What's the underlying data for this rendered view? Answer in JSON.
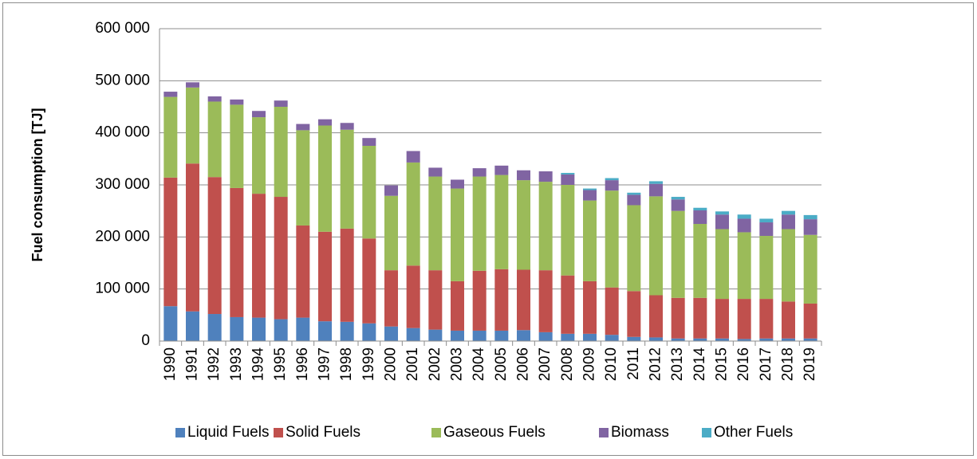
{
  "chart_data": {
    "type": "bar",
    "stacked": true,
    "y_label": "Fuel consumption [TJ]",
    "categories": [
      "1990",
      "1991",
      "1992",
      "1993",
      "1994",
      "1995",
      "1996",
      "1997",
      "1998",
      "1999",
      "2000",
      "2001",
      "2002",
      "2003",
      "2004",
      "2005",
      "2006",
      "2007",
      "2008",
      "2009",
      "2010",
      "2011",
      "2012",
      "2013",
      "2014",
      "2015",
      "2016",
      "2017",
      "2018",
      "2019"
    ],
    "series": [
      {
        "name": "Liquid Fuels",
        "color": "#4f81bd",
        "values": [
          67000,
          57000,
          52000,
          46000,
          45000,
          42000,
          45000,
          38000,
          37000,
          34000,
          28000,
          25000,
          22000,
          20000,
          20000,
          20000,
          21000,
          17000,
          14000,
          14000,
          12000,
          8000,
          7000,
          5000,
          5000,
          5000,
          4000,
          5000,
          5000,
          5000
        ]
      },
      {
        "name": "Solid Fuels",
        "color": "#c0504d",
        "values": [
          247000,
          284000,
          263000,
          248000,
          238000,
          235000,
          177000,
          172000,
          179000,
          163000,
          108000,
          120000,
          114000,
          95000,
          115000,
          118000,
          116000,
          119000,
          112000,
          101000,
          91000,
          88000,
          81000,
          78000,
          78000,
          76000,
          77000,
          76000,
          71000,
          67000
        ]
      },
      {
        "name": "Gaseous Fuels",
        "color": "#9bbb59",
        "values": [
          155000,
          146000,
          145000,
          160000,
          147000,
          173000,
          183000,
          204000,
          190000,
          178000,
          143000,
          198000,
          180000,
          178000,
          181000,
          181000,
          172000,
          170000,
          174000,
          155000,
          186000,
          165000,
          190000,
          167000,
          142000,
          134000,
          128000,
          121000,
          139000,
          132000
        ]
      },
      {
        "name": "Biomass",
        "color": "#8064a2",
        "values": [
          10000,
          10000,
          10000,
          10000,
          12000,
          12000,
          12000,
          12000,
          13000,
          15000,
          20000,
          22000,
          17000,
          17000,
          16000,
          18000,
          19000,
          20000,
          20000,
          20000,
          20000,
          20000,
          24000,
          22000,
          26000,
          28000,
          26000,
          26000,
          28000,
          30000
        ]
      },
      {
        "name": "Other Fuels",
        "color": "#4bacc6",
        "values": [
          0,
          0,
          0,
          0,
          0,
          0,
          0,
          0,
          0,
          0,
          0,
          0,
          0,
          0,
          0,
          0,
          0,
          0,
          3000,
          3000,
          4000,
          4000,
          5000,
          5000,
          5000,
          6000,
          8000,
          7000,
          7000,
          8000
        ]
      }
    ],
    "ylim": [
      0,
      600000
    ],
    "yticks": [
      0,
      {
        "value": 100000,
        "label": "100 000"
      },
      {
        "value": 200000,
        "label": "200 000"
      },
      {
        "value": 300000,
        "label": "300 000"
      },
      {
        "value": 400000,
        "label": "400 000"
      },
      {
        "value": 500000,
        "label": "500 000"
      },
      {
        "value": 600000,
        "label": "600 000"
      }
    ],
    "grid": true,
    "legend": "bottom"
  }
}
